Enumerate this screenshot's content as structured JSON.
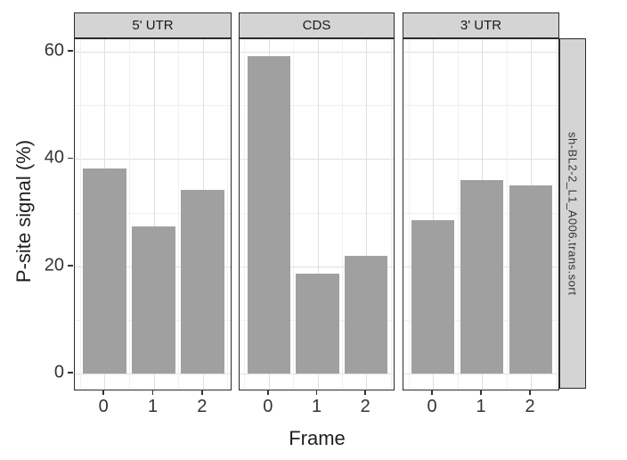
{
  "chart_data": {
    "type": "bar",
    "title": "",
    "xlabel": "Frame",
    "ylabel": "P-site signal (%)",
    "right_strip_label": "sh-BL2-2_L1_A006.trans.sort",
    "categories": [
      "0",
      "1",
      "2"
    ],
    "facets": [
      {
        "label": "5' UTR",
        "values": [
          38.2,
          27.4,
          34.3
        ]
      },
      {
        "label": "CDS",
        "values": [
          59.2,
          18.7,
          21.9
        ]
      },
      {
        "label": "3' UTR",
        "values": [
          28.6,
          36.0,
          35.1
        ]
      }
    ],
    "yticks": [
      0,
      20,
      40,
      60
    ],
    "yticks_minor": [
      10,
      30,
      50
    ],
    "ylim": [
      -2.97,
      62.33
    ],
    "grid": true,
    "legend": "none",
    "colors": {
      "bar_fill": "#a0a0a0",
      "strip_fill": "#d4d4d4",
      "panel_border": "#2a2a2a",
      "grid_major": "#dfdfdf",
      "grid_minor": "#f0f0f0",
      "tick_text": "#333333",
      "title_text": "#1f1f1f"
    }
  }
}
